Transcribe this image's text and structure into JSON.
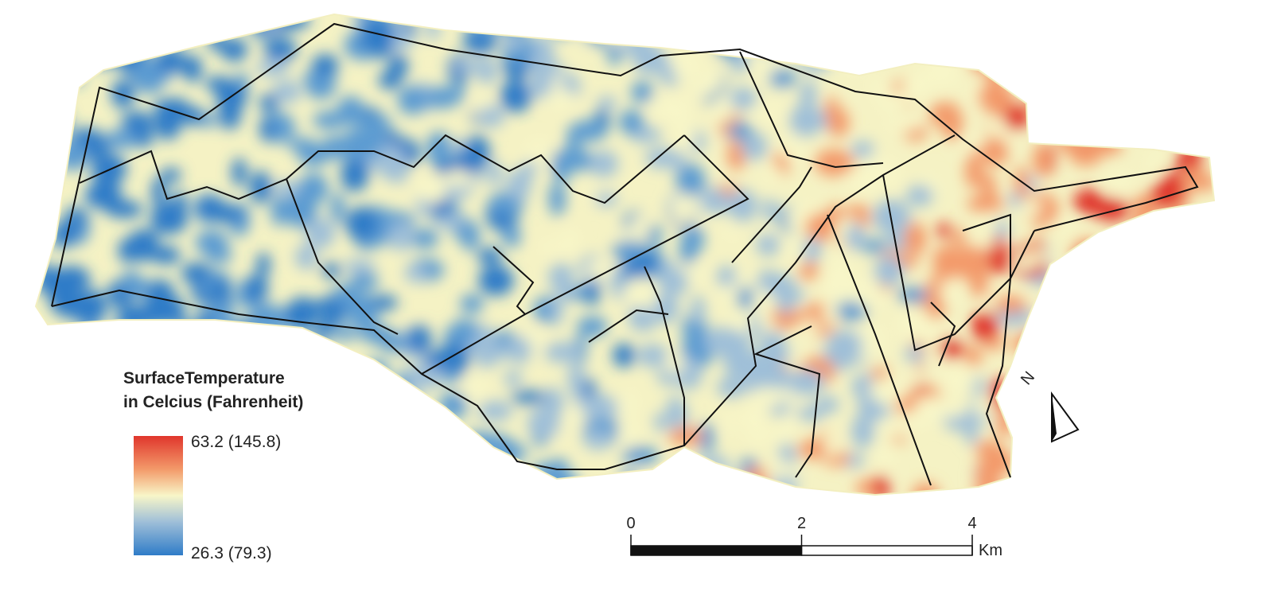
{
  "legend": {
    "title": [
      "SurfaceTemperature",
      "in Celcius (Fahrenheit)"
    ],
    "max_label": "63.2 (145.8)",
    "min_label": "26.3 (79.3)"
  },
  "scale_bar": {
    "ticks": [
      0,
      2,
      4
    ],
    "unit": "Km"
  },
  "north_arrow": {
    "label": "N"
  }
}
